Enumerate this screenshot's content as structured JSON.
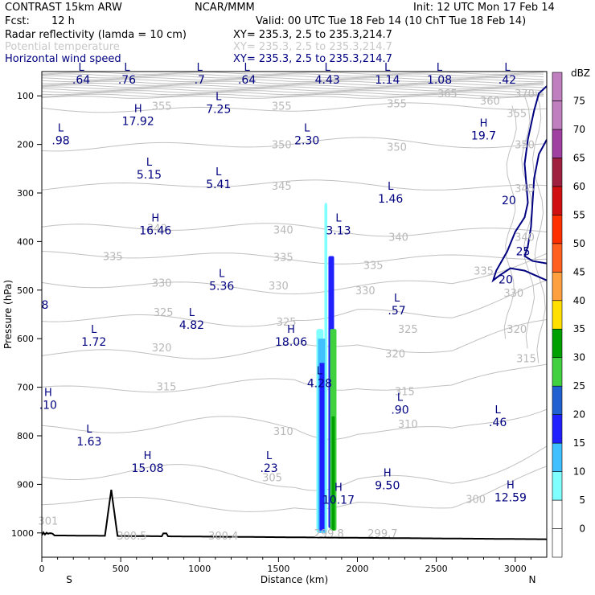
{
  "header": {
    "model": "CONTRAST 15km ARW",
    "org": "NCAR/MMM",
    "init": "Init: 12 UTC Mon 17 Feb 14",
    "fcst_label": "Fcst:",
    "fcst_value": "12 h",
    "valid": "Valid: 00 UTC Tue 18 Feb 14 (10 ChT Tue 18 Feb 14)",
    "fields": [
      {
        "name": "Radar reflectivity (lamda = 10 cm)",
        "xy": "XY= 235.3,  2.5 to 235.3,214.7",
        "color": "#000000"
      },
      {
        "name": "Potential temperature",
        "xy": "XY= 235.3,  2.5 to 235.3,214.7",
        "color": "#c8c8c8"
      },
      {
        "name": "Horizontal wind speed",
        "xy": "XY= 235.3,  2.5 to 235.3,214.7",
        "color": "#000080"
      }
    ]
  },
  "chart_data": {
    "type": "heatmap",
    "title": "",
    "xlabel": "Distance (km)",
    "ylabel": "Pressure (hPa)",
    "xlim": [
      0,
      3200
    ],
    "ylim": [
      1050,
      50
    ],
    "x_ticks": [
      0,
      500,
      1000,
      1500,
      2000,
      2500,
      3000
    ],
    "y_ticks": [
      100,
      200,
      300,
      400,
      500,
      600,
      700,
      800,
      900,
      1000
    ],
    "x_end_labels": {
      "left": "S",
      "right": "N"
    },
    "colorbar": {
      "unit": "dBZ",
      "levels": [
        0,
        5,
        10,
        15,
        20,
        25,
        30,
        35,
        40,
        45,
        50,
        55,
        60,
        65,
        70,
        75
      ],
      "colors": [
        "#ffffff",
        "#ffffff",
        "#80ffff",
        "#40c0ff",
        "#2020ff",
        "#2060d0",
        "#40d040",
        "#00a000",
        "#ffe000",
        "#ffa040",
        "#ff6020",
        "#ff3000",
        "#d01010",
        "#a02040",
        "#a040a0",
        "#c080c0"
      ]
    },
    "reflectivity_column": {
      "x_range_km": [
        1740,
        1840
      ],
      "top_hPa": 320,
      "max_dBZ": 35
    },
    "theta_contours_K": [
      {
        "label": "370",
        "x": 3060,
        "p": 95
      },
      {
        "label": "365",
        "x": 2570,
        "p": 95
      },
      {
        "label": "360",
        "x": 2840,
        "p": 110
      },
      {
        "label": "355",
        "x": 760,
        "p": 120
      },
      {
        "label": "355",
        "x": 1520,
        "p": 120
      },
      {
        "label": "355",
        "x": 2250,
        "p": 115
      },
      {
        "label": "355",
        "x": 3010,
        "p": 135
      },
      {
        "label": "350",
        "x": 1520,
        "p": 200
      },
      {
        "label": "350",
        "x": 2250,
        "p": 205
      },
      {
        "label": "350",
        "x": 3060,
        "p": 200
      },
      {
        "label": "345",
        "x": 1520,
        "p": 285
      },
      {
        "label": "345",
        "x": 3060,
        "p": 290
      },
      {
        "label": "340",
        "x": 730,
        "p": 372
      },
      {
        "label": "340",
        "x": 1530,
        "p": 375
      },
      {
        "label": "340",
        "x": 2260,
        "p": 390
      },
      {
        "label": "340",
        "x": 3060,
        "p": 390
      },
      {
        "label": "335",
        "x": 450,
        "p": 430
      },
      {
        "label": "335",
        "x": 1530,
        "p": 432
      },
      {
        "label": "335",
        "x": 2100,
        "p": 448
      },
      {
        "label": "335",
        "x": 2800,
        "p": 460
      },
      {
        "label": "330",
        "x": 760,
        "p": 485
      },
      {
        "label": "330",
        "x": 1500,
        "p": 490
      },
      {
        "label": "330",
        "x": 2050,
        "p": 500
      },
      {
        "label": "330",
        "x": 2990,
        "p": 505
      },
      {
        "label": "325",
        "x": 770,
        "p": 545
      },
      {
        "label": "325",
        "x": 1550,
        "p": 565
      },
      {
        "label": "325",
        "x": 2320,
        "p": 580
      },
      {
        "label": "320",
        "x": 760,
        "p": 618
      },
      {
        "label": "320",
        "x": 2240,
        "p": 630
      },
      {
        "label": "320",
        "x": 3010,
        "p": 580
      },
      {
        "label": "315",
        "x": 790,
        "p": 698
      },
      {
        "label": "315",
        "x": 2300,
        "p": 708
      },
      {
        "label": "315",
        "x": 3070,
        "p": 640
      },
      {
        "label": "310",
        "x": 1530,
        "p": 790
      },
      {
        "label": "310",
        "x": 2320,
        "p": 775
      },
      {
        "label": "305",
        "x": 1460,
        "p": 885
      },
      {
        "label": "300",
        "x": 2750,
        "p": 930
      },
      {
        "label": "301",
        "x": 40,
        "p": 975
      },
      {
        "label": "300.5",
        "x": 570,
        "p": 1005
      },
      {
        "label": "300.4",
        "x": 1150,
        "p": 1005
      },
      {
        "label": "299.8",
        "x": 1820,
        "p": 1000
      },
      {
        "label": "299.7",
        "x": 2160,
        "p": 1000
      }
    ],
    "wind_contours_ms": [
      {
        "label": "20",
        "x": 2960,
        "p": 315
      },
      {
        "label": "25",
        "x": 3050,
        "p": 420
      },
      {
        "label": "20",
        "x": 2940,
        "p": 478
      }
    ],
    "extrema": [
      {
        "type": "L",
        "value": ".64",
        "x": 250,
        "p": 55
      },
      {
        "type": "L",
        "value": ".76",
        "x": 540,
        "p": 55
      },
      {
        "type": "L",
        "value": ".7",
        "x": 1000,
        "p": 55
      },
      {
        "type": "L",
        "value": ".64",
        "x": 1300,
        "p": 55
      },
      {
        "type": "L",
        "value": "4.43",
        "x": 1810,
        "p": 55
      },
      {
        "type": "L",
        "value": "1.14",
        "x": 2190,
        "p": 55
      },
      {
        "type": "L",
        "value": "1.08",
        "x": 2520,
        "p": 55
      },
      {
        "type": "L",
        "value": ".42",
        "x": 2950,
        "p": 55
      },
      {
        "type": "H",
        "value": "17.92",
        "x": 610,
        "p": 140
      },
      {
        "type": "L",
        "value": "7.25",
        "x": 1120,
        "p": 115
      },
      {
        "type": "H",
        "value": "19.7",
        "x": 2800,
        "p": 170
      },
      {
        "type": "L",
        "value": ".98",
        "x": 120,
        "p": 180
      },
      {
        "type": "L",
        "value": "2.30",
        "x": 1680,
        "p": 180
      },
      {
        "type": "L",
        "value": "5.15",
        "x": 680,
        "p": 250
      },
      {
        "type": "L",
        "value": "5.41",
        "x": 1120,
        "p": 270
      },
      {
        "type": "L",
        "value": "1.46",
        "x": 2210,
        "p": 300
      },
      {
        "type": "H",
        "value": "16.46",
        "x": 720,
        "p": 365
      },
      {
        "type": "L",
        "value": "3.13",
        "x": 1880,
        "p": 365
      },
      {
        "type": "L",
        "value": "5.36",
        "x": 1140,
        "p": 480
      },
      {
        "type": "L",
        "value": ".57",
        "x": 2250,
        "p": 530
      },
      {
        "type": "L",
        "value": "4.82",
        "x": 950,
        "p": 560
      },
      {
        "type": "L",
        "value": "1.72",
        "x": 330,
        "p": 595
      },
      {
        "type": "H",
        "value": "18.06",
        "x": 1580,
        "p": 595
      },
      {
        "type": "L",
        "value": "4.28",
        "x": 1760,
        "p": 680
      },
      {
        "type": "H",
        "value": ".10",
        "x": 40,
        "p": 725
      },
      {
        "type": "L",
        "value": ".90",
        "x": 2270,
        "p": 735
      },
      {
        "type": "L",
        "value": ".46",
        "x": 2890,
        "p": 760
      },
      {
        "type": "L",
        "value": "1.63",
        "x": 300,
        "p": 800
      },
      {
        "type": "H",
        "value": "15.08",
        "x": 670,
        "p": 855
      },
      {
        "type": "L",
        "value": ".23",
        "x": 1440,
        "p": 855
      },
      {
        "type": "H",
        "value": "9.50",
        "x": 2190,
        "p": 890
      },
      {
        "type": "H",
        "value": "10.17",
        "x": 1880,
        "p": 920
      },
      {
        "type": "H",
        "value": "12.59",
        "x": 2970,
        "p": 915
      }
    ],
    "side_labels": [
      {
        "text": "8",
        "x": 20,
        "p": 530
      }
    ],
    "terrain_peak": {
      "x": 440,
      "p": 910
    }
  }
}
